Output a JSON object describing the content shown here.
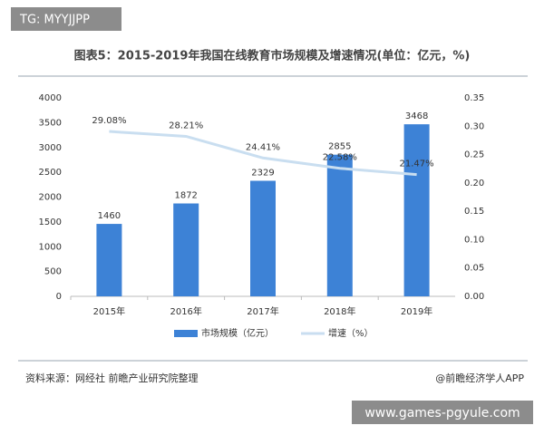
{
  "badge": "TG: MYYJJPP",
  "site": "www.games-pgyule.com",
  "source": "资料来源：网经社 前瞻产业研究院整理",
  "credit": "@前瞻经济学人APP",
  "chart_data": {
    "type": "bar-line",
    "title": "图表5：2015-2019年我国在线教育市场规模及增速情况(单位：亿元，%)",
    "categories": [
      "2015年",
      "2016年",
      "2017年",
      "2018年",
      "2019年"
    ],
    "series": [
      {
        "name": "市场规模（亿元）",
        "color": "#3d82d6",
        "values": [
          1460,
          1872,
          2329,
          2855,
          3468
        ]
      },
      {
        "name": "增速（%）",
        "color": "#c9def0",
        "axis": "y2",
        "values": [
          0.2908,
          0.2821,
          0.2441,
          0.2258,
          0.2147
        ],
        "value_labels": [
          "29.08%",
          "28.21%",
          "24.41%",
          "22.58%",
          "21.47%"
        ]
      }
    ],
    "ylim": [
      0,
      4000
    ],
    "yticks": [
      0,
      500,
      1000,
      1500,
      2000,
      2500,
      3000,
      3500,
      4000
    ],
    "y2lim": [
      0,
      0.35
    ],
    "y2ticks": [
      {
        "value": 0,
        "label": "0.00"
      },
      {
        "value": 0.05,
        "label": "0.05"
      },
      {
        "value": 0.1,
        "label": "0.10"
      },
      {
        "value": 0.15,
        "label": "0.15"
      },
      {
        "value": 0.2,
        "label": "0.20"
      },
      {
        "value": 0.25,
        "label": "0.25"
      },
      {
        "value": 0.3,
        "label": "0.30"
      },
      {
        "value": 0.35,
        "label": "0.35"
      }
    ],
    "legend": "bottom"
  }
}
